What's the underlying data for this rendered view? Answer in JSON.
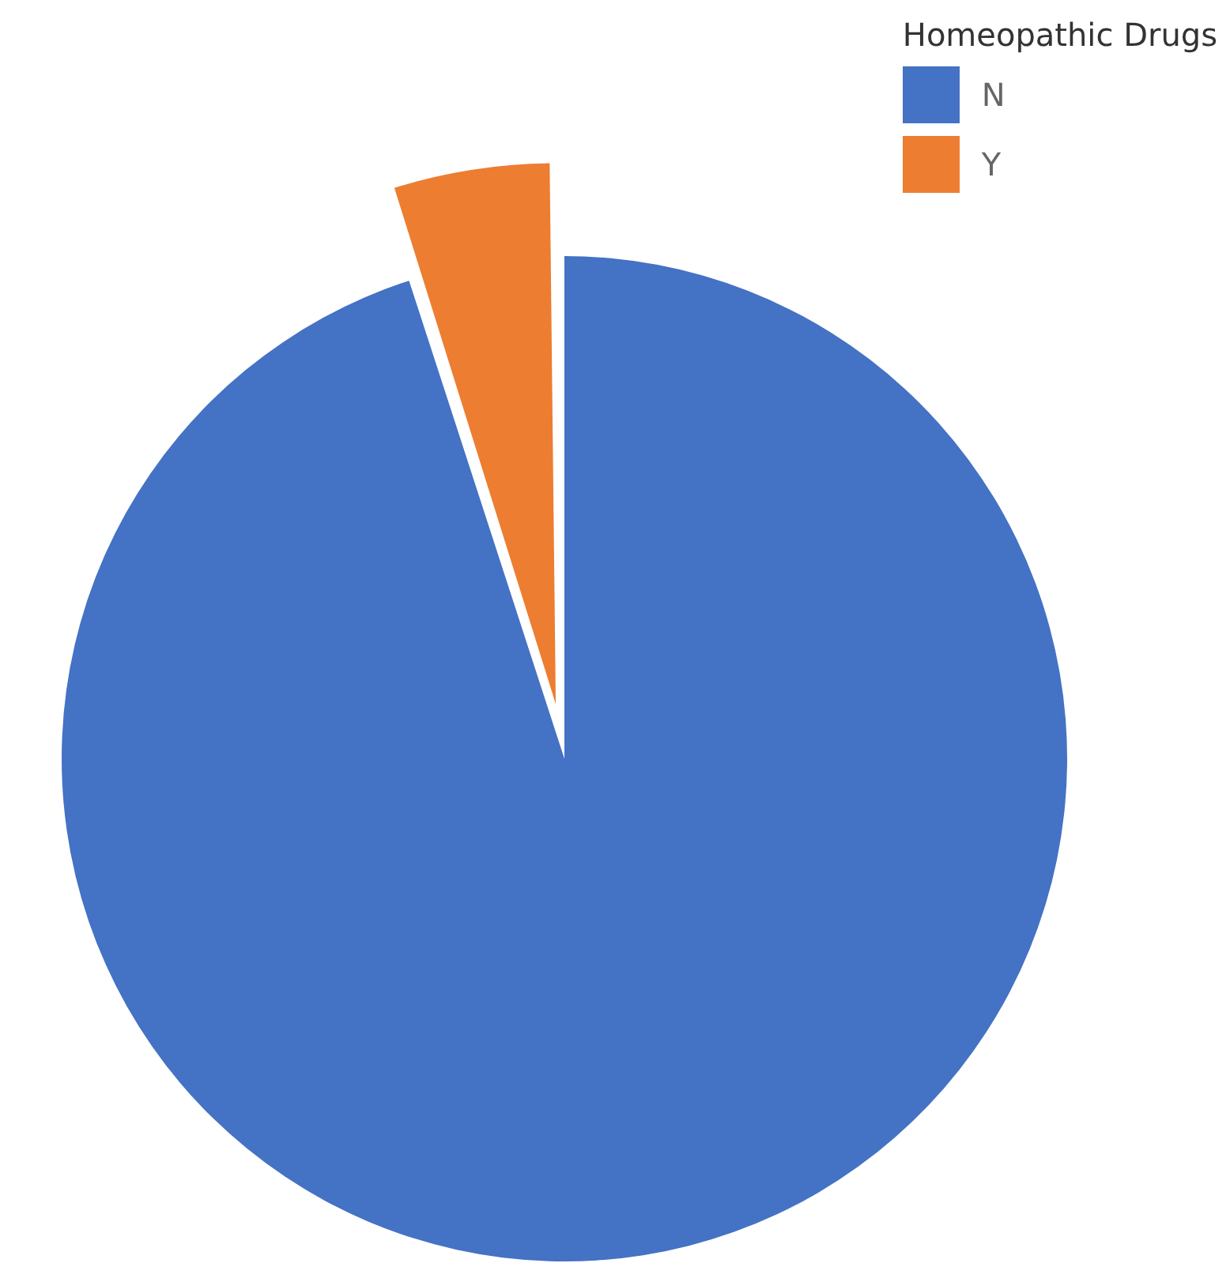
{
  "chart_data": {
    "type": "pie",
    "categories": [
      "N",
      "Y"
    ],
    "values": [
      95,
      5
    ],
    "colors": [
      "#4472c4",
      "#ed7d31"
    ],
    "legend_title": "Homeopathic Drugs",
    "legend": "top right"
  }
}
